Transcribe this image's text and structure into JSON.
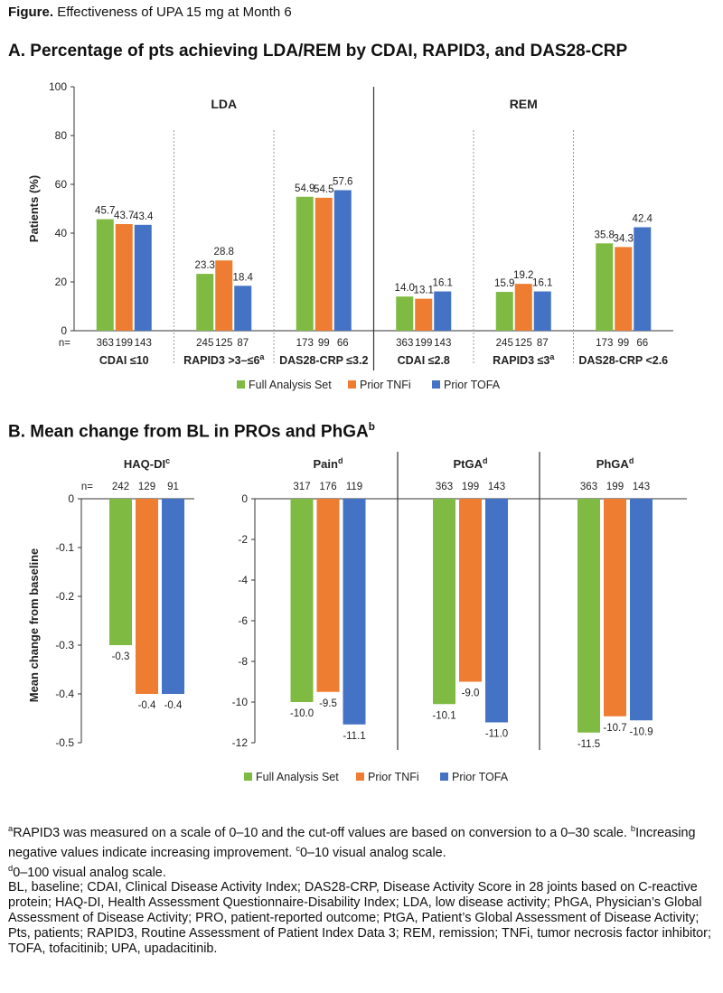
{
  "figure_caption": {
    "label": "Figure.",
    "text": "Effectiveness of UPA 15 mg at Month 6"
  },
  "panelA": {
    "title": "A. Percentage of pts achieving LDA/REM by CDAI, RAPID3, and DAS28-CRP"
  },
  "panelB": {
    "title": "B. Mean change from BL in PROs and PhGA",
    "title_sup": "b"
  },
  "colors": {
    "full_analysis_set": "#7fba42",
    "prior_tnfi": "#ee7d31",
    "prior_tofa": "#4472c4",
    "divider_solid": "#333333",
    "divider_dotted": "#9a9a9a"
  },
  "chart_data": [
    {
      "type": "bar",
      "panel": "A",
      "ylabel": "Patients (%)",
      "ylim": [
        0,
        100
      ],
      "yticks": [
        0,
        20,
        40,
        60,
        80,
        100
      ],
      "group_headers": [
        "LDA",
        "REM"
      ],
      "n_prefix": "n=",
      "legend": [
        "Full Analysis Set",
        "Prior TNFi",
        "Prior TOFA"
      ],
      "legend_position": "bottom-center",
      "categories": [
        {
          "label": "CDAI ≤10",
          "sup": "",
          "group": "LDA",
          "values": [
            45.7,
            43.7,
            43.4
          ],
          "value_labels": [
            "45.7",
            "43.7",
            "43.4"
          ],
          "n": [
            "363",
            "199",
            "143"
          ]
        },
        {
          "label": "RAPID3 >3–≤6",
          "sup": "a",
          "group": "LDA",
          "values": [
            23.3,
            28.8,
            18.4
          ],
          "value_labels": [
            "23.3",
            "28.8",
            "18.4"
          ],
          "n": [
            "245",
            "125",
            "87"
          ]
        },
        {
          "label": "DAS28-CRP ≤3.2",
          "sup": "",
          "group": "LDA",
          "values": [
            54.9,
            54.5,
            57.6
          ],
          "value_labels": [
            "54.9",
            "54.5",
            "57.6"
          ],
          "n": [
            "173",
            "99",
            "66"
          ]
        },
        {
          "label": "CDAI ≤2.8",
          "sup": "",
          "group": "REM",
          "values": [
            14.0,
            13.1,
            16.1
          ],
          "value_labels": [
            "14.0",
            "13.1",
            "16.1"
          ],
          "n": [
            "363",
            "199",
            "143"
          ]
        },
        {
          "label": "RAPID3 ≤3",
          "sup": "a",
          "group": "REM",
          "values": [
            15.9,
            19.2,
            16.1
          ],
          "value_labels": [
            "15.9",
            "19.2",
            "16.1"
          ],
          "n": [
            "245",
            "125",
            "87"
          ]
        },
        {
          "label": "DAS28-CRP <2.6",
          "sup": "",
          "group": "REM",
          "values": [
            35.8,
            34.3,
            42.4
          ],
          "value_labels": [
            "35.8",
            "34.3",
            "42.4"
          ],
          "n": [
            "173",
            "99",
            "66"
          ]
        }
      ]
    },
    {
      "type": "bar",
      "panel": "B",
      "ylabel": "Mean change from baseline",
      "n_prefix": "n=",
      "legend": [
        "Full Analysis Set",
        "Prior TNFi",
        "Prior TOFA"
      ],
      "legend_position": "bottom-center",
      "subplots": [
        {
          "title": "HAQ-DI",
          "sup": "c",
          "ylim": [
            -0.5,
            0
          ],
          "yticks": [
            0,
            -0.1,
            -0.2,
            -0.3,
            -0.4,
            -0.5
          ],
          "ytick_labels": [
            "0",
            "-0.1",
            "-0.2",
            "-0.3",
            "-0.4",
            "-0.5"
          ],
          "values": [
            -0.3,
            -0.4,
            -0.4
          ],
          "value_labels": [
            "-0.3",
            "-0.4",
            "-0.4"
          ],
          "n": [
            "242",
            "129",
            "91"
          ]
        },
        {
          "title": "Pain",
          "sup": "d",
          "ylim": [
            -12,
            0
          ],
          "yticks": [
            0,
            -2,
            -4,
            -6,
            -8,
            -10,
            -12
          ],
          "ytick_labels": [
            "0",
            "-2",
            "-4",
            "-6",
            "-8",
            "-10",
            "-12"
          ],
          "values": [
            -10.0,
            -9.5,
            -11.1
          ],
          "value_labels": [
            "-10.0",
            "-9.5",
            "-11.1"
          ],
          "n": [
            "317",
            "176",
            "119"
          ]
        },
        {
          "title": "PtGA",
          "sup": "d",
          "ylim": [
            -12,
            0
          ],
          "values": [
            -10.1,
            -9.0,
            -11.0
          ],
          "value_labels": [
            "-10.1",
            "-9.0",
            "-11.0"
          ],
          "n": [
            "363",
            "199",
            "143"
          ]
        },
        {
          "title": "PhGA",
          "sup": "d",
          "ylim": [
            -12,
            0
          ],
          "values": [
            -11.5,
            -10.7,
            -10.9
          ],
          "value_labels": [
            "-11.5",
            "-10.7",
            "-10.9"
          ],
          "n": [
            "363",
            "199",
            "143"
          ]
        }
      ]
    }
  ],
  "footnotes": {
    "line1_sup_a": "a",
    "line1_a": "RAPID3 was measured on a scale of 0–10 and the cut-off values are based on conversion to a 0–30 scale. ",
    "line1_sup_b": "b",
    "line1_b": "Increasing negative values indicate increasing improvement. ",
    "line1_sup_c": "c",
    "line1_c": "0–10 visual analog scale.",
    "line2_sup_d": "d",
    "line2_d": "0–100 visual analog scale.",
    "abbreviations": "BL, baseline; CDAI, Clinical Disease Activity Index; DAS28-CRP, Disease Activity Score in 28 joints based on C-reactive protein; HAQ-DI, Health Assessment Questionnaire-Disability Index; LDA, low disease activity; PhGA, Physician’s Global Assessment of Disease Activity; PRO, patient-reported outcome; PtGA, Patient’s Global Assessment of Disease Activity; Pts, patients; RAPID3, Routine Assessment of Patient Index Data 3; REM, remission; TNFi, tumor necrosis factor inhibitor; TOFA, tofacitinib; UPA, upadacitinib."
  }
}
